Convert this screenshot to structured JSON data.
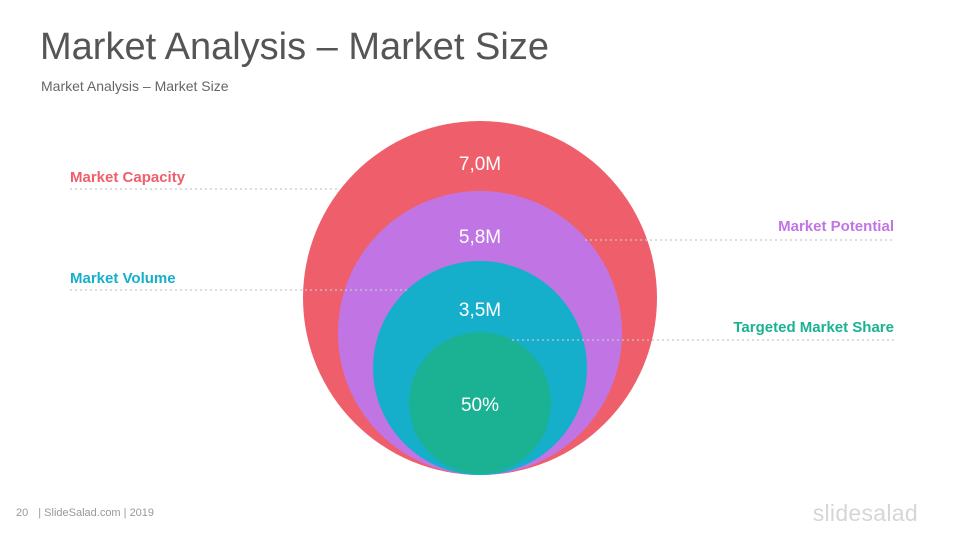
{
  "slide": {
    "title": "Market Analysis – Market Size",
    "subtitle": "Market Analysis – Market Size"
  },
  "labels": {
    "capacity": "Market Capacity",
    "volume": "Market Volume",
    "potential": "Market Potential",
    "share": "Targeted Market Share"
  },
  "values": {
    "capacity": "7,0M",
    "potential": "5,8M",
    "volume": "3,5M",
    "share": "50%"
  },
  "colors": {
    "capacity": "#ef5f6b",
    "potential": "#c175e4",
    "volume": "#16afcb",
    "share": "#1ab292",
    "leader": "#c8c8c8"
  },
  "footer": {
    "page": "20",
    "source": "| SlideSalad.com | 2019"
  },
  "logo": "slidesalad"
}
